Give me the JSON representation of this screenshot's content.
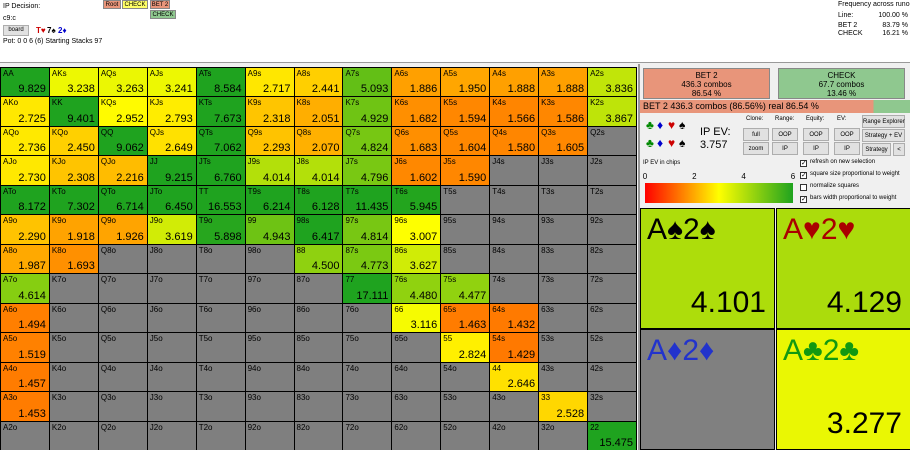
{
  "info": {
    "decision": "IP Decision:",
    "line": "c9:c",
    "board_button": "board",
    "board_cards": [
      {
        "text": "T♥",
        "color": "#cc0000"
      },
      {
        "text": "7♠",
        "color": "#000000"
      },
      {
        "text": "2♦",
        "color": "#0000cc"
      }
    ],
    "pot": "Pot: 0 0 6 (6) Starting Stacks 97"
  },
  "tree": [
    {
      "label": "Root",
      "color": "#e8957a"
    },
    {
      "label": "CHECK",
      "color": "#ffff66"
    },
    {
      "label": "BET 2",
      "color": "#e8957a"
    },
    {
      "label": "CHECK",
      "color": "#8fc88f"
    }
  ],
  "frequency": {
    "title": "Frequency across runouts:",
    "rows": [
      [
        "Line:",
        "100.00 %"
      ],
      [
        "BET 2",
        "83.79 %"
      ],
      [
        "CHECK",
        "16.21 %"
      ]
    ]
  },
  "grid": {
    "labels": [
      [
        "AA",
        "AKs",
        "AQs",
        "AJs",
        "ATs",
        "A9s",
        "A8s",
        "A7s",
        "A6s",
        "A5s",
        "A4s",
        "A3s",
        "A2s"
      ],
      [
        "AKo",
        "KK",
        "KQs",
        "KJs",
        "KTs",
        "K9s",
        "K8s",
        "K7s",
        "K6s",
        "K5s",
        "K4s",
        "K3s",
        "K2s"
      ],
      [
        "AQo",
        "KQo",
        "QQ",
        "QJs",
        "QTs",
        "Q9s",
        "Q8s",
        "Q7s",
        "Q6s",
        "Q5s",
        "Q4s",
        "Q3s",
        "Q2s"
      ],
      [
        "AJo",
        "KJo",
        "QJo",
        "JJ",
        "JTs",
        "J9s",
        "J8s",
        "J7s",
        "J6s",
        "J5s",
        "J4s",
        "J3s",
        "J2s"
      ],
      [
        "ATo",
        "KTo",
        "QTo",
        "JTo",
        "TT",
        "T9s",
        "T8s",
        "T7s",
        "T6s",
        "T5s",
        "T4s",
        "T3s",
        "T2s"
      ],
      [
        "A9o",
        "K9o",
        "Q9o",
        "J9o",
        "T9o",
        "99",
        "98s",
        "97s",
        "96s",
        "95s",
        "94s",
        "93s",
        "92s"
      ],
      [
        "A8o",
        "K8o",
        "Q8o",
        "J8o",
        "T8o",
        "98o",
        "88",
        "87s",
        "86s",
        "85s",
        "84s",
        "83s",
        "82s"
      ],
      [
        "A7o",
        "K7o",
        "Q7o",
        "J7o",
        "T7o",
        "97o",
        "87o",
        "77",
        "76s",
        "75s",
        "74s",
        "73s",
        "72s"
      ],
      [
        "A6o",
        "K6o",
        "Q6o",
        "J6o",
        "T6o",
        "96o",
        "86o",
        "76o",
        "66",
        "65s",
        "64s",
        "63s",
        "62s"
      ],
      [
        "A5o",
        "K5o",
        "Q5o",
        "J5o",
        "T5o",
        "95o",
        "85o",
        "75o",
        "65o",
        "55",
        "54s",
        "53s",
        "52s"
      ],
      [
        "A4o",
        "K4o",
        "Q4o",
        "J4o",
        "T4o",
        "94o",
        "84o",
        "74o",
        "64o",
        "54o",
        "44",
        "43s",
        "42s"
      ],
      [
        "A3o",
        "K3o",
        "Q3o",
        "J3o",
        "T3o",
        "93o",
        "83o",
        "73o",
        "63o",
        "53o",
        "43o",
        "33",
        "32s"
      ],
      [
        "A2o",
        "K2o",
        "Q2o",
        "J2o",
        "T2o",
        "92o",
        "82o",
        "72o",
        "62o",
        "52o",
        "42o",
        "32o",
        "22"
      ]
    ],
    "values": [
      [
        "9.829",
        "3.238",
        "3.263",
        "3.241",
        "8.584",
        "2.717",
        "2.441",
        "5.093",
        "1.886",
        "1.950",
        "1.888",
        "1.888",
        "3.836"
      ],
      [
        "2.725",
        "9.401",
        "2.952",
        "2.793",
        "7.673",
        "2.318",
        "2.051",
        "4.929",
        "1.682",
        "1.594",
        "1.566",
        "1.586",
        "3.867"
      ],
      [
        "2.736",
        "2.450",
        "9.062",
        "2.649",
        "7.062",
        "2.293",
        "2.070",
        "4.824",
        "1.683",
        "1.604",
        "1.580",
        "1.605",
        null
      ],
      [
        "2.730",
        "2.308",
        "2.216",
        "9.215",
        "6.760",
        "4.014",
        "4.014",
        "4.796",
        "1.602",
        "1.590",
        null,
        null,
        null
      ],
      [
        "8.172",
        "7.302",
        "6.714",
        "6.450",
        "16.553",
        "6.214",
        "6.128",
        "11.435",
        "5.945",
        null,
        null,
        null,
        null
      ],
      [
        "2.290",
        "1.918",
        "1.926",
        "3.619",
        "5.898",
        "4.943",
        "6.417",
        "4.814",
        "3.007",
        null,
        null,
        null,
        null
      ],
      [
        "1.987",
        "1.693",
        null,
        null,
        null,
        null,
        "4.500",
        "4.773",
        "3.627",
        null,
        null,
        null,
        null
      ],
      [
        "4.614",
        null,
        null,
        null,
        null,
        null,
        null,
        "17.111",
        "4.480",
        "4.477",
        null,
        null,
        null
      ],
      [
        "1.494",
        null,
        null,
        null,
        null,
        null,
        null,
        null,
        "3.116",
        "1.463",
        "1.432",
        null,
        null
      ],
      [
        "1.519",
        null,
        null,
        null,
        null,
        null,
        null,
        null,
        null,
        "2.824",
        "1.429",
        null,
        null
      ],
      [
        "1.457",
        null,
        null,
        null,
        null,
        null,
        null,
        null,
        null,
        null,
        "2.646",
        null,
        null
      ],
      [
        "1.453",
        null,
        null,
        null,
        null,
        null,
        null,
        null,
        null,
        null,
        null,
        "2.528",
        null
      ],
      [
        null,
        null,
        null,
        null,
        null,
        null,
        null,
        null,
        null,
        null,
        null,
        null,
        "15.475"
      ]
    ]
  },
  "strategy": [
    {
      "name": "BET 2",
      "combos": "436.3 combos",
      "freq": "86.54 %",
      "color": "#e8957a"
    },
    {
      "name": "CHECK",
      "combos": "67.7 combos",
      "freq": "13.46 %",
      "color": "#8fc88f"
    }
  ],
  "selected_bar": "BET 2  436.3 combos (86.56%) real  86.54 %",
  "suit_icons": [
    {
      "text": "♣",
      "color": "#008800"
    },
    {
      "text": "♦",
      "color": "#0000cc"
    },
    {
      "text": "♥",
      "color": "#cc0000"
    },
    {
      "text": "♠",
      "color": "#000000"
    }
  ],
  "ev": {
    "label": "IP EV:",
    "value": "3.757"
  },
  "controls": {
    "headers": [
      "Clone:",
      "Range:",
      "Equity:",
      "EV:"
    ],
    "row1": [
      "full",
      "OOP",
      "OOP",
      "OOP"
    ],
    "row2": [
      "zoom",
      "IP",
      "IP",
      "IP"
    ],
    "side": [
      "Range Explorer",
      "Strategy + EV",
      "Strategy",
      "<"
    ]
  },
  "checkboxes": [
    {
      "label": "refresh on new selection",
      "checked": true
    },
    {
      "label": "square size proportional to weight",
      "checked": true
    },
    {
      "label": "normalize squares",
      "checked": false
    },
    {
      "label": "bars width proportional to weight",
      "checked": true
    }
  ],
  "legend": {
    "title": "IP EV in chips",
    "ticks": [
      0,
      2,
      4,
      6
    ],
    "lim": [
      0,
      6
    ],
    "stops": [
      [
        0,
        "#ff0000"
      ],
      [
        3,
        "#ffff00"
      ],
      [
        6,
        "#1fa31f"
      ]
    ]
  },
  "suit_combos": [
    {
      "hand": "A♠2♠",
      "color": "#000000",
      "value": "4.101"
    },
    {
      "hand": "A♥2♥",
      "color": "#aa0000",
      "value": "4.129"
    },
    {
      "hand": "A♦2♦",
      "color": "#2233cc",
      "value": null
    },
    {
      "hand": "A♣2♣",
      "color": "#119911",
      "value": "3.277"
    }
  ]
}
